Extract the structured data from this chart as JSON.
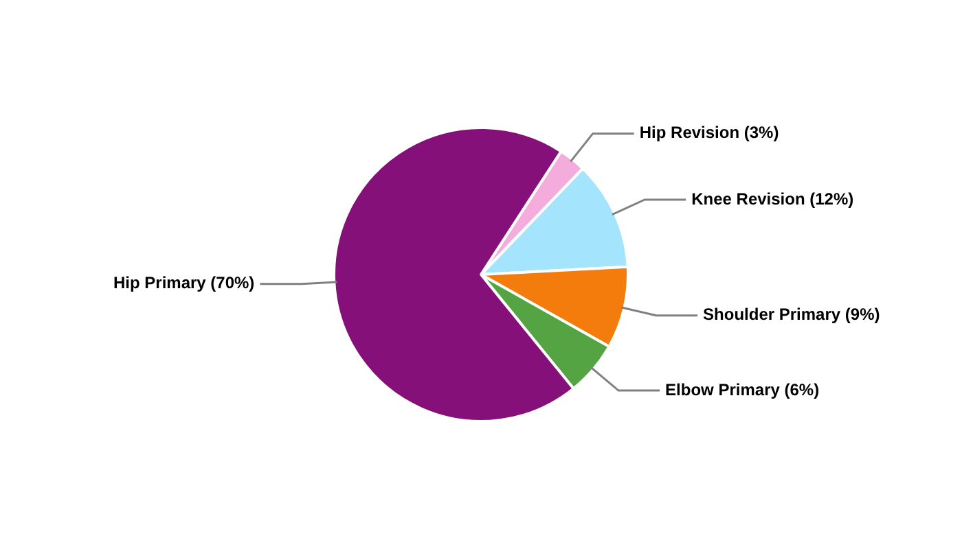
{
  "chart_data": {
    "type": "pie",
    "categories": [
      "Hip Revision",
      "Knee Revision",
      "Shoulder Primary",
      "Elbow Primary",
      "Hip Primary"
    ],
    "values": [
      3,
      12,
      9,
      6,
      70
    ],
    "value_labels": [
      "(3%)",
      "(12%)",
      "(9%)",
      "(6%)",
      "(70%)"
    ],
    "colors": [
      "#f4acdc",
      "#a4e4fc",
      "#f47c0c",
      "#54a444",
      "#85107a"
    ],
    "legend": false
  }
}
